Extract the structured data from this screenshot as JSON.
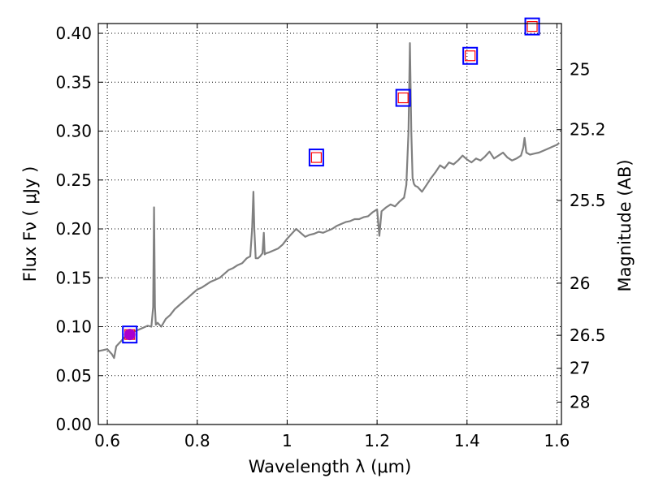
{
  "chart_data": {
    "type": "line",
    "xlabel": "Wavelength  λ (μm)",
    "ylabel": "Flux  Fν  ( μJy )",
    "right_ylabel": "Magnitude (AB)",
    "xlim": [
      0.58,
      1.61
    ],
    "ylim": [
      0.0,
      0.41
    ],
    "grid": true,
    "x_ticks": [
      {
        "value": 0.6,
        "label": "0.6"
      },
      {
        "value": 0.8,
        "label": "0.8"
      },
      {
        "value": 1.0,
        "label": "1"
      },
      {
        "value": 1.2,
        "label": "1.2"
      },
      {
        "value": 1.4,
        "label": "1.4"
      },
      {
        "value": 1.6,
        "label": "1.6"
      }
    ],
    "y_ticks": [
      {
        "value": 0.0,
        "label": "0.00"
      },
      {
        "value": 0.05,
        "label": "0.05"
      },
      {
        "value": 0.1,
        "label": "0.10"
      },
      {
        "value": 0.15,
        "label": "0.15"
      },
      {
        "value": 0.2,
        "label": "0.20"
      },
      {
        "value": 0.25,
        "label": "0.25"
      },
      {
        "value": 0.3,
        "label": "0.30"
      },
      {
        "value": 0.35,
        "label": "0.35"
      },
      {
        "value": 0.4,
        "label": "0.40"
      }
    ],
    "right_ticks": [
      {
        "flux": 0.3631,
        "label": "25"
      },
      {
        "flux": 0.3015,
        "label": "25.2"
      },
      {
        "flux": 0.2291,
        "label": "25.5"
      },
      {
        "flux": 0.1445,
        "label": "26"
      },
      {
        "flux": 0.0912,
        "label": "26.5"
      },
      {
        "flux": 0.0575,
        "label": "27"
      },
      {
        "flux": 0.0229,
        "label": "28"
      }
    ],
    "series": [
      {
        "kind": "spectrum",
        "color": "#808080",
        "x": [
          0.58,
          0.59,
          0.6,
          0.61,
          0.615,
          0.62,
          0.63,
          0.64,
          0.65,
          0.66,
          0.67,
          0.68,
          0.69,
          0.698,
          0.702,
          0.704,
          0.706,
          0.708,
          0.712,
          0.72,
          0.73,
          0.74,
          0.75,
          0.76,
          0.77,
          0.78,
          0.79,
          0.8,
          0.81,
          0.82,
          0.83,
          0.84,
          0.85,
          0.86,
          0.87,
          0.88,
          0.89,
          0.9,
          0.91,
          0.918,
          0.922,
          0.925,
          0.927,
          0.93,
          0.935,
          0.94,
          0.945,
          0.948,
          0.95,
          0.953,
          0.96,
          0.97,
          0.98,
          0.99,
          1.0,
          1.01,
          1.02,
          1.03,
          1.04,
          1.05,
          1.06,
          1.07,
          1.08,
          1.09,
          1.1,
          1.11,
          1.12,
          1.13,
          1.14,
          1.15,
          1.16,
          1.17,
          1.18,
          1.19,
          1.2,
          1.205,
          1.21,
          1.22,
          1.23,
          1.24,
          1.25,
          1.26,
          1.265,
          1.27,
          1.273,
          1.276,
          1.279,
          1.282,
          1.285,
          1.29,
          1.3,
          1.31,
          1.32,
          1.33,
          1.34,
          1.35,
          1.36,
          1.37,
          1.38,
          1.39,
          1.4,
          1.41,
          1.42,
          1.43,
          1.44,
          1.45,
          1.46,
          1.47,
          1.48,
          1.49,
          1.5,
          1.51,
          1.52,
          1.525,
          1.528,
          1.532,
          1.54,
          1.55,
          1.56,
          1.57,
          1.58,
          1.59,
          1.6,
          1.605
        ],
        "y": [
          0.075,
          0.076,
          0.077,
          0.072,
          0.068,
          0.08,
          0.085,
          0.09,
          0.094,
          0.095,
          0.097,
          0.099,
          0.101,
          0.1,
          0.12,
          0.222,
          0.12,
          0.102,
          0.104,
          0.1,
          0.108,
          0.112,
          0.118,
          0.122,
          0.126,
          0.13,
          0.134,
          0.138,
          0.14,
          0.143,
          0.146,
          0.148,
          0.15,
          0.154,
          0.158,
          0.16,
          0.163,
          0.165,
          0.17,
          0.172,
          0.2,
          0.238,
          0.2,
          0.17,
          0.17,
          0.172,
          0.175,
          0.196,
          0.174,
          0.175,
          0.176,
          0.178,
          0.18,
          0.184,
          0.19,
          0.195,
          0.2,
          0.196,
          0.192,
          0.194,
          0.195,
          0.197,
          0.196,
          0.198,
          0.2,
          0.203,
          0.205,
          0.207,
          0.208,
          0.21,
          0.21,
          0.212,
          0.213,
          0.217,
          0.22,
          0.193,
          0.218,
          0.222,
          0.225,
          0.223,
          0.228,
          0.232,
          0.245,
          0.3,
          0.39,
          0.3,
          0.252,
          0.246,
          0.244,
          0.243,
          0.238,
          0.245,
          0.252,
          0.258,
          0.265,
          0.262,
          0.268,
          0.266,
          0.27,
          0.275,
          0.271,
          0.268,
          0.272,
          0.27,
          0.274,
          0.279,
          0.272,
          0.275,
          0.278,
          0.273,
          0.27,
          0.272,
          0.275,
          0.283,
          0.293,
          0.278,
          0.276,
          0.277,
          0.278,
          0.28,
          0.282,
          0.284,
          0.286,
          0.288
        ]
      },
      {
        "kind": "photometry",
        "outer_color": "#0000ff",
        "inner_color": "#ff0000",
        "points": [
          {
            "x": 0.65,
            "y": 0.092
          },
          {
            "x": 1.065,
            "y": 0.273
          },
          {
            "x": 1.258,
            "y": 0.334
          },
          {
            "x": 1.407,
            "y": 0.377
          },
          {
            "x": 1.545,
            "y": 0.407
          }
        ]
      },
      {
        "kind": "highlight-point",
        "color": "#aa00cc",
        "points": [
          {
            "x": 0.65,
            "y": 0.092
          }
        ]
      }
    ]
  }
}
